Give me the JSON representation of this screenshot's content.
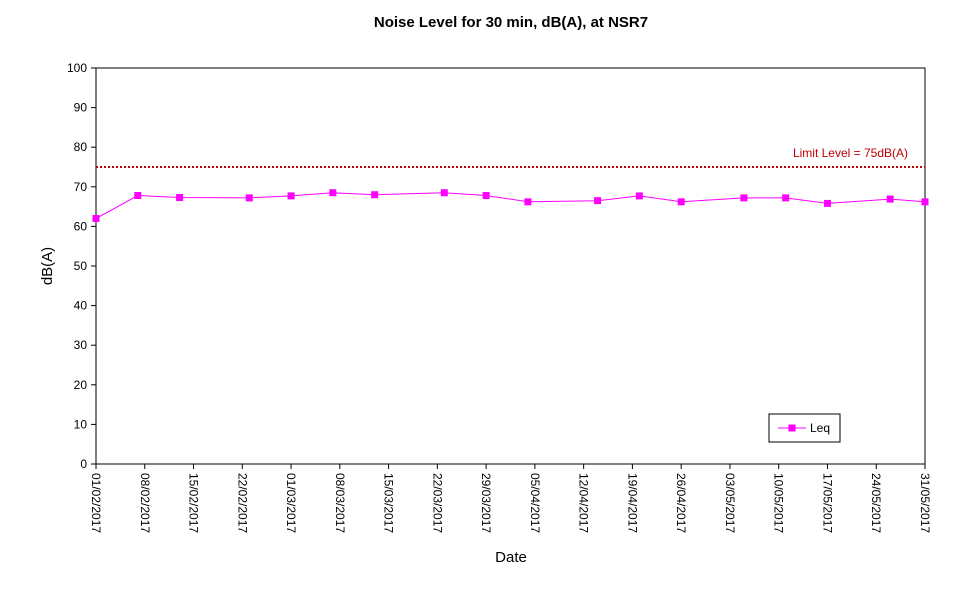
{
  "chart_data": {
    "type": "line",
    "title": "Noise Level for 30 min, dB(A), at NSR7",
    "xlabel": "Date",
    "ylabel": "dB(A)",
    "ylim": [
      0,
      100
    ],
    "yticks": [
      0,
      10,
      20,
      30,
      40,
      50,
      60,
      70,
      80,
      90,
      100
    ],
    "xlim": [
      "01/02/2017",
      "31/05/2017"
    ],
    "xticks": [
      "01/02/2017",
      "08/02/2017",
      "15/02/2017",
      "22/02/2017",
      "01/03/2017",
      "08/03/2017",
      "15/03/2017",
      "22/03/2017",
      "29/03/2017",
      "05/04/2017",
      "12/04/2017",
      "19/04/2017",
      "26/04/2017",
      "03/05/2017",
      "10/05/2017",
      "17/05/2017",
      "24/05/2017",
      "31/05/2017"
    ],
    "grid": false,
    "legend_position": "bottom-right",
    "limit_line": {
      "value": 75,
      "label": "Limit Level  = 75dB(A)",
      "color": "#c00000"
    },
    "series": [
      {
        "name": "Leq",
        "color": "#ff00ff",
        "x": [
          "01/02/2017",
          "07/02/2017",
          "13/02/2017",
          "23/02/2017",
          "01/03/2017",
          "07/03/2017",
          "13/03/2017",
          "23/03/2017",
          "29/03/2017",
          "04/04/2017",
          "14/04/2017",
          "20/04/2017",
          "26/04/2017",
          "05/05/2017",
          "11/05/2017",
          "17/05/2017",
          "26/05/2017",
          "31/05/2017"
        ],
        "values": [
          62,
          67.8,
          67.3,
          67.2,
          67.7,
          68.5,
          68,
          68.5,
          67.8,
          66.2,
          66.5,
          67.7,
          66.2,
          67.2,
          67.2,
          65.8,
          66.9,
          66.2
        ]
      }
    ]
  }
}
